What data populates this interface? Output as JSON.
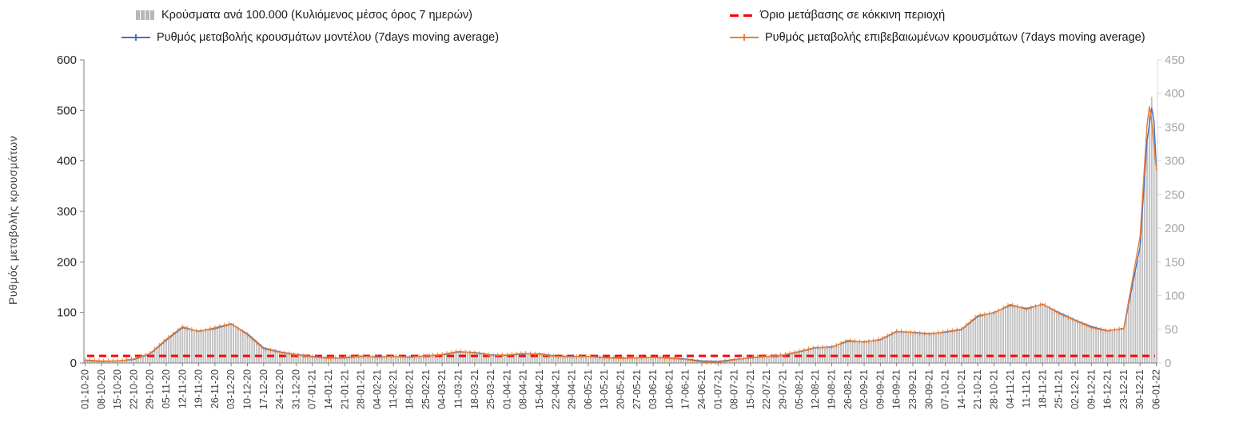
{
  "legend": {
    "bars_label": "Κρούσματα ανά 100.000 (Κυλιόμενος μέσος όρος 7 ημερών)",
    "threshold_label": "Όριο μετάβασης  σε κόκκινη περιοχή",
    "model_label": "Ρυθμός μεταβολής κρουσμάτων μοντέλου (7days moving average)",
    "confirmed_label": "Ρυθμός μεταβολής επιβεβαιωμένων κρουσμάτων (7days moving average)"
  },
  "colors": {
    "bars": "#c0c0c0",
    "model_line": "#4472c4",
    "confirmed_line": "#ed7d31",
    "threshold": "#ff0000",
    "axis": "#808080",
    "right_axis_line": "#d9d9d9",
    "left_tick_text": "#262626",
    "right_tick_text": "#a6a6a6",
    "x_tick_text": "#404040"
  },
  "chart_data": {
    "type": "bar+line",
    "title": "",
    "ylabel_left": "Ρυθμός μεταβολής κρουσμάτων",
    "left_axis": {
      "min": 0,
      "max": 600,
      "step": 100
    },
    "right_axis": {
      "min": 0,
      "max": 450,
      "step": 50
    },
    "threshold_value": 14,
    "total_days": 462,
    "days_per_tick": 7,
    "x_tick_labels": [
      "01-10-20",
      "08-10-20",
      "15-10-20",
      "22-10-20",
      "29-10-20",
      "05-11-20",
      "12-11-20",
      "19-11-20",
      "26-11-20",
      "03-12-20",
      "10-12-20",
      "17-12-20",
      "24-12-20",
      "31-12-20",
      "07-01-21",
      "14-01-21",
      "21-01-21",
      "28-01-21",
      "04-02-21",
      "11-02-21",
      "18-02-21",
      "25-02-21",
      "04-03-21",
      "11-03-21",
      "18-03-21",
      "25-03-21",
      "01-04-21",
      "08-04-21",
      "15-04-21",
      "22-04-21",
      "29-04-21",
      "06-05-21",
      "13-05-21",
      "20-05-21",
      "27-05-21",
      "03-06-21",
      "10-06-21",
      "17-06-21",
      "24-06-21",
      "01-07-21",
      "08-07-21",
      "15-07-21",
      "22-07-21",
      "29-07-21",
      "05-08-21",
      "12-08-21",
      "19-08-21",
      "26-08-21",
      "02-09-21",
      "09-09-21",
      "16-09-21",
      "23-09-21",
      "30-09-21",
      "07-10-21",
      "14-10-21",
      "21-10-21",
      "28-10-21",
      "04-11-21",
      "11-11-21",
      "18-11-21",
      "25-11-21",
      "02-12-21",
      "09-12-21",
      "16-12-21",
      "23-12-21",
      "30-12-21",
      "06-01-22"
    ],
    "series": [
      {
        "name": "Κρούσματα ανά 100.000 (Κυλιόμενος μέσος όρος 7 ημερών)",
        "kind": "bar",
        "axis": "right",
        "points": [
          [
            0,
            4
          ],
          [
            7,
            2
          ],
          [
            14,
            3
          ],
          [
            21,
            5
          ],
          [
            28,
            14
          ],
          [
            35,
            34
          ],
          [
            42,
            53
          ],
          [
            49,
            47
          ],
          [
            56,
            51
          ],
          [
            63,
            58
          ],
          [
            70,
            44
          ],
          [
            77,
            23
          ],
          [
            84,
            17
          ],
          [
            91,
            13
          ],
          [
            98,
            10
          ],
          [
            105,
            8
          ],
          [
            112,
            8
          ],
          [
            119,
            10
          ],
          [
            126,
            9
          ],
          [
            133,
            10
          ],
          [
            140,
            9
          ],
          [
            147,
            11
          ],
          [
            154,
            12
          ],
          [
            161,
            17
          ],
          [
            168,
            16
          ],
          [
            175,
            12
          ],
          [
            182,
            11
          ],
          [
            189,
            14
          ],
          [
            196,
            14
          ],
          [
            203,
            11
          ],
          [
            210,
            10
          ],
          [
            217,
            10
          ],
          [
            224,
            8
          ],
          [
            231,
            8
          ],
          [
            238,
            8
          ],
          [
            245,
            8
          ],
          [
            252,
            8
          ],
          [
            259,
            6
          ],
          [
            266,
            3
          ],
          [
            273,
            2
          ],
          [
            280,
            5
          ],
          [
            287,
            8
          ],
          [
            294,
            10
          ],
          [
            301,
            11
          ],
          [
            308,
            17
          ],
          [
            315,
            23
          ],
          [
            322,
            24
          ],
          [
            329,
            32
          ],
          [
            336,
            32
          ],
          [
            343,
            35
          ],
          [
            350,
            47
          ],
          [
            357,
            46
          ],
          [
            364,
            44
          ],
          [
            371,
            46
          ],
          [
            378,
            50
          ],
          [
            385,
            69
          ],
          [
            392,
            75
          ],
          [
            399,
            86
          ],
          [
            406,
            81
          ],
          [
            413,
            87
          ],
          [
            420,
            75
          ],
          [
            427,
            64
          ],
          [
            434,
            54
          ],
          [
            441,
            48
          ],
          [
            448,
            51
          ],
          [
            455,
            170
          ],
          [
            458,
            330
          ],
          [
            459,
            370
          ],
          [
            460,
            395
          ],
          [
            461,
            360
          ],
          [
            462,
            290
          ]
        ]
      },
      {
        "name": "Ρυθμός μεταβολής κρουσμάτων μοντέλου (7days moving average)",
        "kind": "line",
        "axis": "left",
        "points": [
          [
            0,
            5
          ],
          [
            7,
            3
          ],
          [
            14,
            4
          ],
          [
            21,
            7
          ],
          [
            28,
            18
          ],
          [
            35,
            45
          ],
          [
            42,
            70
          ],
          [
            49,
            63
          ],
          [
            56,
            68
          ],
          [
            63,
            77
          ],
          [
            70,
            58
          ],
          [
            77,
            30
          ],
          [
            84,
            22
          ],
          [
            91,
            17
          ],
          [
            98,
            13
          ],
          [
            105,
            10
          ],
          [
            112,
            10
          ],
          [
            119,
            13
          ],
          [
            126,
            12
          ],
          [
            133,
            13
          ],
          [
            140,
            12
          ],
          [
            147,
            14
          ],
          [
            154,
            16
          ],
          [
            161,
            22
          ],
          [
            168,
            21
          ],
          [
            175,
            16
          ],
          [
            182,
            15
          ],
          [
            189,
            18
          ],
          [
            196,
            18
          ],
          [
            203,
            14
          ],
          [
            210,
            13
          ],
          [
            217,
            13
          ],
          [
            224,
            11
          ],
          [
            231,
            10
          ],
          [
            238,
            10
          ],
          [
            245,
            11
          ],
          [
            252,
            10
          ],
          [
            259,
            8
          ],
          [
            266,
            4
          ],
          [
            273,
            3
          ],
          [
            280,
            7
          ],
          [
            287,
            10
          ],
          [
            294,
            13
          ],
          [
            301,
            15
          ],
          [
            308,
            22
          ],
          [
            315,
            30
          ],
          [
            322,
            32
          ],
          [
            329,
            43
          ],
          [
            336,
            42
          ],
          [
            343,
            46
          ],
          [
            350,
            62
          ],
          [
            357,
            61
          ],
          [
            364,
            58
          ],
          [
            371,
            61
          ],
          [
            378,
            66
          ],
          [
            385,
            92
          ],
          [
            392,
            100
          ],
          [
            399,
            114
          ],
          [
            406,
            108
          ],
          [
            413,
            116
          ],
          [
            420,
            100
          ],
          [
            427,
            85
          ],
          [
            434,
            72
          ],
          [
            441,
            64
          ],
          [
            448,
            68
          ],
          [
            455,
            230
          ],
          [
            458,
            440
          ],
          [
            460,
            505
          ],
          [
            461,
            480
          ],
          [
            462,
            390
          ]
        ]
      },
      {
        "name": "Ρυθμός μεταβολής επιβεβαιωμένων κρουσμάτων (7days moving average)",
        "kind": "line-ticks",
        "axis": "left",
        "points": [
          [
            0,
            6
          ],
          [
            7,
            4
          ],
          [
            14,
            4
          ],
          [
            21,
            8
          ],
          [
            28,
            19
          ],
          [
            35,
            47
          ],
          [
            42,
            72
          ],
          [
            49,
            62
          ],
          [
            56,
            70
          ],
          [
            63,
            78
          ],
          [
            70,
            56
          ],
          [
            77,
            28
          ],
          [
            84,
            21
          ],
          [
            91,
            16
          ],
          [
            98,
            12
          ],
          [
            105,
            9
          ],
          [
            112,
            11
          ],
          [
            119,
            14
          ],
          [
            126,
            11
          ],
          [
            133,
            13
          ],
          [
            140,
            11
          ],
          [
            147,
            14
          ],
          [
            154,
            17
          ],
          [
            161,
            23
          ],
          [
            168,
            20
          ],
          [
            175,
            15
          ],
          [
            182,
            16
          ],
          [
            189,
            19
          ],
          [
            196,
            17
          ],
          [
            203,
            13
          ],
          [
            210,
            12
          ],
          [
            217,
            13
          ],
          [
            224,
            10
          ],
          [
            231,
            9
          ],
          [
            238,
            10
          ],
          [
            245,
            11
          ],
          [
            252,
            9
          ],
          [
            259,
            7
          ],
          [
            266,
            2
          ],
          [
            273,
            1
          ],
          [
            280,
            6
          ],
          [
            287,
            11
          ],
          [
            294,
            13
          ],
          [
            301,
            16
          ],
          [
            308,
            23
          ],
          [
            315,
            31
          ],
          [
            322,
            31
          ],
          [
            329,
            45
          ],
          [
            336,
            41
          ],
          [
            343,
            47
          ],
          [
            350,
            63
          ],
          [
            357,
            60
          ],
          [
            364,
            57
          ],
          [
            371,
            62
          ],
          [
            378,
            67
          ],
          [
            385,
            94
          ],
          [
            392,
            99
          ],
          [
            399,
            116
          ],
          [
            406,
            106
          ],
          [
            413,
            117
          ],
          [
            420,
            98
          ],
          [
            427,
            84
          ],
          [
            434,
            70
          ],
          [
            441,
            63
          ],
          [
            448,
            69
          ],
          [
            455,
            250
          ],
          [
            458,
            470
          ],
          [
            459,
            508
          ],
          [
            460,
            480
          ],
          [
            461,
            430
          ],
          [
            462,
            385
          ]
        ]
      }
    ]
  }
}
